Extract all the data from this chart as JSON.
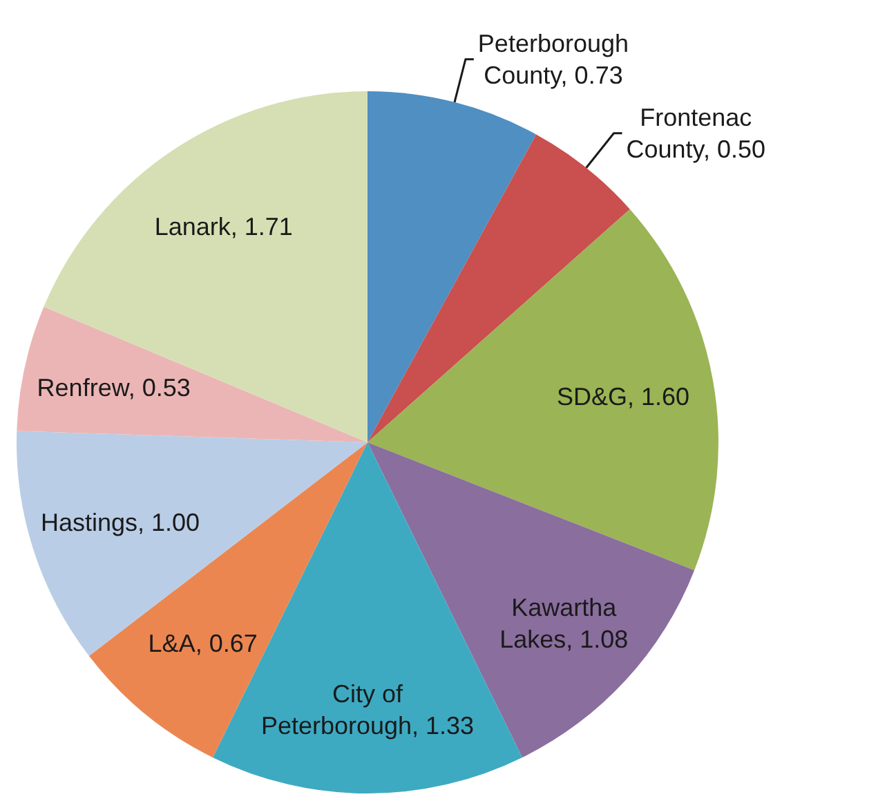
{
  "chart_data": {
    "type": "pie",
    "categories": [
      "Peterborough County",
      "Frontenac County",
      "SD&G",
      "Kawartha Lakes",
      "City of Peterborough",
      "L&A",
      "Hastings",
      "Renfrew",
      "Lanark"
    ],
    "values": [
      0.73,
      0.5,
      1.6,
      1.08,
      1.33,
      0.67,
      1.0,
      0.53,
      1.71
    ],
    "value_labels": [
      "0.73",
      "0.50",
      "1.60",
      "1.08",
      "1.33",
      "0.67",
      "1.00",
      "0.53",
      "1.71"
    ],
    "colors": [
      "#4f8fc2",
      "#c9504f",
      "#9bb455",
      "#8a6e9e",
      "#3daac2",
      "#ec8650",
      "#bacde6",
      "#ebb5b6",
      "#d6dfb3"
    ]
  }
}
